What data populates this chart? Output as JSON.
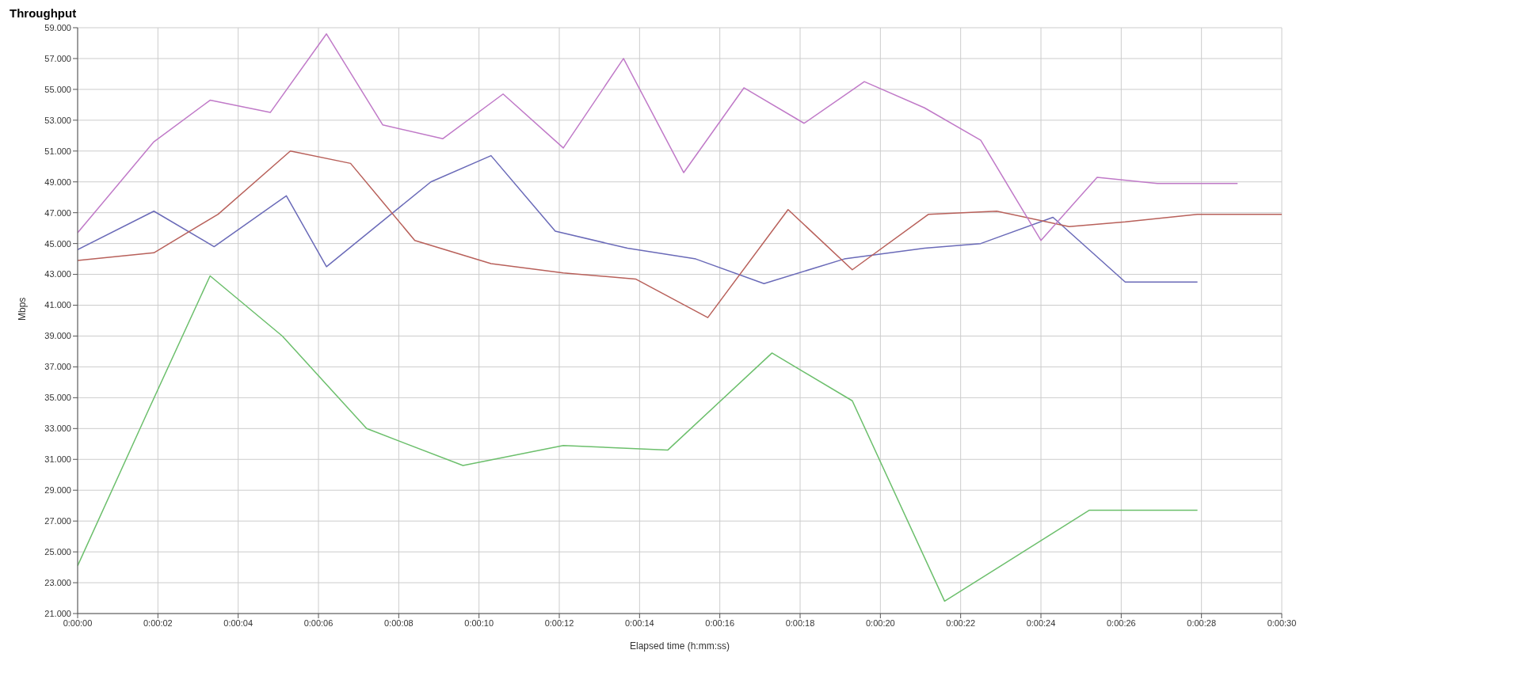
{
  "chart_data": {
    "type": "line",
    "title": "Throughput",
    "xlabel": "Elapsed time (h:mm:ss)",
    "ylabel": "Mbps",
    "xlim": [
      0,
      30
    ],
    "xticks": [
      {
        "value": 0,
        "label": "0:00:00"
      },
      {
        "value": 2,
        "label": "0:00:02"
      },
      {
        "value": 4,
        "label": "0:00:04"
      },
      {
        "value": 6,
        "label": "0:00:06"
      },
      {
        "value": 8,
        "label": "0:00:08"
      },
      {
        "value": 10,
        "label": "0:00:10"
      },
      {
        "value": 12,
        "label": "0:00:12"
      },
      {
        "value": 14,
        "label": "0:00:14"
      },
      {
        "value": 16,
        "label": "0:00:16"
      },
      {
        "value": 18,
        "label": "0:00:18"
      },
      {
        "value": 20,
        "label": "0:00:20"
      },
      {
        "value": 22,
        "label": "0:00:22"
      },
      {
        "value": 24,
        "label": "0:00:24"
      },
      {
        "value": 26,
        "label": "0:00:26"
      },
      {
        "value": 28,
        "label": "0:00:28"
      },
      {
        "value": 30,
        "label": "0:00:30"
      }
    ],
    "ylim": [
      21,
      59
    ],
    "yticks": [
      {
        "value": 21,
        "label": "21.000"
      },
      {
        "value": 23,
        "label": "23.000"
      },
      {
        "value": 25,
        "label": "25.000"
      },
      {
        "value": 27,
        "label": "27.000"
      },
      {
        "value": 29,
        "label": "29.000"
      },
      {
        "value": 31,
        "label": "31.000"
      },
      {
        "value": 33,
        "label": "33.000"
      },
      {
        "value": 35,
        "label": "35.000"
      },
      {
        "value": 37,
        "label": "37.000"
      },
      {
        "value": 39,
        "label": "39.000"
      },
      {
        "value": 41,
        "label": "41.000"
      },
      {
        "value": 43,
        "label": "43.000"
      },
      {
        "value": 45,
        "label": "45.000"
      },
      {
        "value": 47,
        "label": "47.000"
      },
      {
        "value": 49,
        "label": "49.000"
      },
      {
        "value": 51,
        "label": "51.000"
      },
      {
        "value": 53,
        "label": "53.000"
      },
      {
        "value": 55,
        "label": "55.000"
      },
      {
        "value": 57,
        "label": "57.000"
      },
      {
        "value": 59,
        "label": "59.000"
      }
    ],
    "grid": true,
    "marker": "none",
    "line_style": "solid",
    "series": [
      {
        "color": "#6a6ab8",
        "x": [
          0,
          1.9,
          3.4,
          5.2,
          6.2,
          8.8,
          10.3,
          11.9,
          13.7,
          15.4,
          17.1,
          19.1,
          21.1,
          22.5,
          24.3,
          26.1,
          27.9
        ],
        "values": [
          44.6,
          47.1,
          44.8,
          48.1,
          43.5,
          49,
          50.7,
          45.8,
          44.7,
          44,
          42.4,
          44,
          44.7,
          45,
          46.7,
          42.5,
          42.5
        ]
      },
      {
        "color": "#b8605a",
        "x": [
          0,
          1.9,
          3.5,
          5.3,
          6.8,
          8.4,
          10.3,
          12.1,
          13.9,
          15.7,
          17.7,
          19.3,
          21.2,
          22.9,
          24.7,
          26.1,
          27.9,
          30
        ],
        "values": [
          43.9,
          44.4,
          46.9,
          51,
          50.2,
          45.2,
          43.7,
          43.1,
          42.7,
          40.2,
          47.2,
          43.3,
          46.9,
          47.1,
          46.1,
          46.4,
          46.9,
          46.9
        ]
      },
      {
        "color": "#6cbf6c",
        "x": [
          0,
          1.8,
          3.3,
          5.1,
          7.2,
          9.6,
          12.1,
          14.7,
          17.3,
          19.3,
          21.6,
          25.2,
          27.9
        ],
        "values": [
          24.1,
          34.4,
          42.9,
          39,
          33,
          30.6,
          31.9,
          31.6,
          37.9,
          34.8,
          21.8,
          27.7,
          27.7
        ]
      },
      {
        "color": "#c07ac8",
        "x": [
          0,
          1.9,
          3.3,
          4.8,
          6.2,
          7.6,
          9.1,
          10.6,
          12.1,
          13.6,
          15.1,
          16.6,
          18.1,
          19.6,
          21.1,
          22.5,
          24,
          25.4,
          26.9,
          28.9
        ],
        "values": [
          45.7,
          51.6,
          54.3,
          53.5,
          58.6,
          52.7,
          51.8,
          54.7,
          51.2,
          57,
          49.6,
          55.1,
          52.8,
          55.5,
          53.8,
          51.7,
          45.2,
          49.3,
          48.9,
          48.9
        ]
      }
    ]
  }
}
